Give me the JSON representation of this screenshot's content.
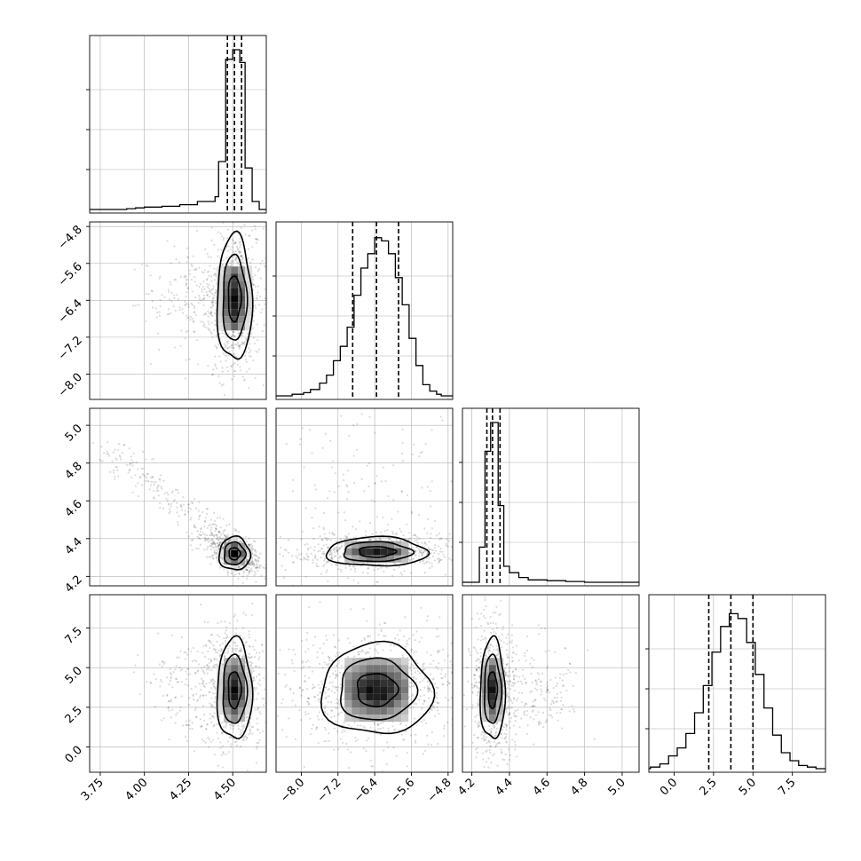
{
  "chart_data": {
    "type": "corner",
    "parameters": 4,
    "grid": true,
    "colors": {
      "line": "#000000",
      "grid": "#b0b0b0",
      "points": "#000000",
      "density_high": "#000000",
      "density_low": "#ffffff"
    },
    "axes": [
      {
        "lim": [
          3.69,
          4.69
        ],
        "ticks": [
          3.75,
          4.0,
          4.25,
          4.5
        ],
        "tick_labels": [
          "3.75",
          "4.00",
          "4.25",
          "4.50"
        ]
      },
      {
        "lim": [
          -8.55,
          -4.7
        ],
        "ticks": [
          -8.0,
          -7.2,
          -6.4,
          -5.6,
          -4.8
        ],
        "tick_labels": [
          "−8.0",
          "−7.2",
          "−6.4",
          "−5.6",
          "−4.8"
        ]
      },
      {
        "lim": [
          4.15,
          5.09
        ],
        "ticks": [
          4.2,
          4.4,
          4.6,
          4.8,
          5.0
        ],
        "tick_labels": [
          "4.2",
          "4.4",
          "4.6",
          "4.8",
          "5.0"
        ]
      },
      {
        "lim": [
          -1.6,
          9.6
        ],
        "ticks": [
          0.0,
          2.5,
          5.0,
          7.5
        ],
        "tick_labels": [
          "0.0",
          "2.5",
          "5.0",
          "7.5"
        ]
      }
    ],
    "marginals": [
      {
        "quantiles": [
          4.47,
          4.51,
          4.55
        ],
        "bins": [
          [
            3.75,
            0.0
          ],
          [
            3.9,
            0.005
          ],
          [
            3.95,
            0.01
          ],
          [
            4.0,
            0.015
          ],
          [
            4.1,
            0.02
          ],
          [
            4.2,
            0.03
          ],
          [
            4.3,
            0.05
          ],
          [
            4.4,
            0.08
          ],
          [
            4.42,
            0.3
          ],
          [
            4.46,
            0.94
          ],
          [
            4.5,
            1.0
          ],
          [
            4.54,
            0.92
          ],
          [
            4.57,
            0.26
          ],
          [
            4.61,
            0.05
          ],
          [
            4.65,
            0.0
          ]
        ]
      },
      {
        "quantiles": [
          -6.88,
          -6.36,
          -5.88
        ],
        "bins": [
          [
            -8.2,
            0.01
          ],
          [
            -7.95,
            0.02
          ],
          [
            -7.8,
            0.04
          ],
          [
            -7.6,
            0.08
          ],
          [
            -7.45,
            0.13
          ],
          [
            -7.3,
            0.22
          ],
          [
            -7.15,
            0.31
          ],
          [
            -7.0,
            0.43
          ],
          [
            -6.85,
            0.63
          ],
          [
            -6.7,
            0.8
          ],
          [
            -6.55,
            0.89
          ],
          [
            -6.4,
            0.99
          ],
          [
            -6.25,
            0.97
          ],
          [
            -6.1,
            0.89
          ],
          [
            -5.95,
            0.74
          ],
          [
            -5.8,
            0.57
          ],
          [
            -5.65,
            0.36
          ],
          [
            -5.5,
            0.19
          ],
          [
            -5.35,
            0.07
          ],
          [
            -5.2,
            0.03
          ],
          [
            -5.05,
            0.01
          ],
          [
            -4.95,
            0.0
          ]
        ]
      },
      {
        "quantiles": [
          4.28,
          4.31,
          4.35
        ],
        "bins": [
          [
            4.2,
            0.0
          ],
          [
            4.24,
            0.22
          ],
          [
            4.27,
            0.82
          ],
          [
            4.3,
            1.0
          ],
          [
            4.34,
            0.48
          ],
          [
            4.37,
            0.1
          ],
          [
            4.4,
            0.06
          ],
          [
            4.45,
            0.03
          ],
          [
            4.5,
            0.015
          ],
          [
            4.6,
            0.01
          ],
          [
            4.7,
            0.005
          ],
          [
            4.8,
            0.0
          ]
        ]
      },
      {
        "quantiles": [
          2.2,
          3.6,
          5.0
        ],
        "bins": [
          [
            -1.5,
            0.01
          ],
          [
            -0.9,
            0.03
          ],
          [
            -0.35,
            0.08
          ],
          [
            0.2,
            0.13
          ],
          [
            0.75,
            0.22
          ],
          [
            1.3,
            0.35
          ],
          [
            1.85,
            0.52
          ],
          [
            2.4,
            0.73
          ],
          [
            2.95,
            0.89
          ],
          [
            3.5,
            0.97
          ],
          [
            4.05,
            0.94
          ],
          [
            4.6,
            0.79
          ],
          [
            5.15,
            0.59
          ],
          [
            5.7,
            0.38
          ],
          [
            6.25,
            0.21
          ],
          [
            6.8,
            0.1
          ],
          [
            7.35,
            0.05
          ],
          [
            7.9,
            0.02
          ],
          [
            8.45,
            0.01
          ],
          [
            9.0,
            0.0
          ]
        ]
      }
    ],
    "pairs": [
      {
        "x": 0,
        "y": 1,
        "center": [
          4.51,
          -6.36
        ],
        "spread": [
          0.045,
          0.62
        ],
        "corr": 0.0,
        "tail": {
          "dx": -0.42,
          "dy": 0.0,
          "spread": 0.5
        }
      },
      {
        "x": 0,
        "y": 2,
        "center": [
          4.51,
          4.32
        ],
        "spread": [
          0.04,
          0.04
        ],
        "corr": -0.5,
        "tail": {
          "dx": -0.72,
          "dy": 0.56,
          "spread": 0.03
        }
      },
      {
        "x": 0,
        "y": 3,
        "center": [
          4.51,
          3.6
        ],
        "spread": [
          0.045,
          1.45
        ],
        "corr": 0.0,
        "tail": {
          "dx": -0.4,
          "dy": 0.0,
          "spread": 1.5
        }
      },
      {
        "x": 1,
        "y": 2,
        "center": [
          -6.36,
          4.33
        ],
        "spread": [
          0.5,
          0.035
        ],
        "corr": 0.05,
        "tail": {
          "dx": 0.0,
          "dy": 0.4,
          "spread": 0.5
        }
      },
      {
        "x": 1,
        "y": 3,
        "center": [
          -6.36,
          3.6
        ],
        "spread": [
          0.55,
          1.3
        ],
        "corr": 0.0,
        "tail": {
          "dx": 0.0,
          "dy": 0.0,
          "spread": 1.6
        }
      },
      {
        "x": 2,
        "y": 3,
        "center": [
          4.31,
          3.6
        ],
        "spread": [
          0.03,
          1.45
        ],
        "corr": 0.0,
        "tail": {
          "dx": 0.4,
          "dy": 0.0,
          "spread": 1.5
        }
      }
    ]
  }
}
